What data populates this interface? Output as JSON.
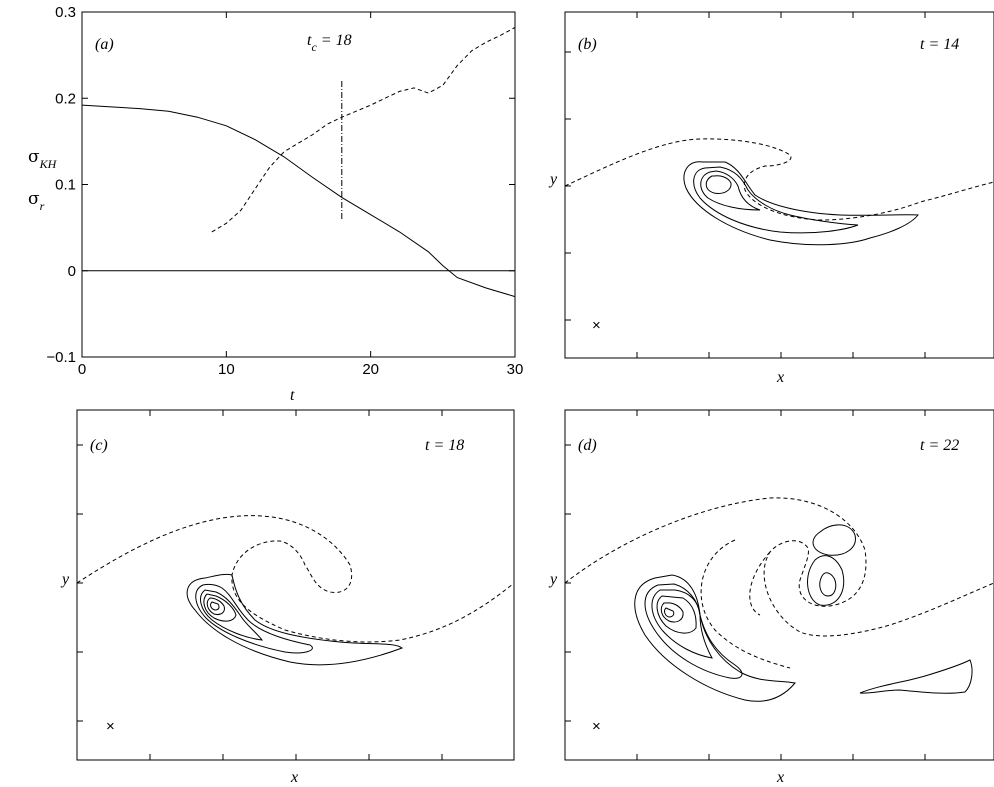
{
  "chart_data": [
    {
      "type": "line",
      "panel": "(a)",
      "xlabel": "t",
      "ylabel_lines": [
        {
          "symbol": "σ",
          "subscript": "KH"
        },
        {
          "symbol": "σ",
          "subscript": "r"
        }
      ],
      "xlim": [
        0,
        30
      ],
      "ylim": [
        -0.1,
        0.3
      ],
      "xticks": [
        0,
        10,
        20,
        30
      ],
      "xtick_labels": [
        "0",
        "10",
        "20",
        "30"
      ],
      "yticks": [
        -0.1,
        0,
        0.1,
        0.2,
        0.3
      ],
      "ytick_labels": [
        "−0.1",
        "0",
        "0.1",
        "0.2",
        "0.3"
      ],
      "series": [
        {
          "style": "solid",
          "x": [
            0,
            2,
            4,
            6,
            8,
            10,
            12,
            14,
            16,
            18,
            20,
            22,
            24,
            25,
            26,
            28,
            30
          ],
          "y": [
            0.192,
            0.19,
            0.188,
            0.185,
            0.178,
            0.168,
            0.152,
            0.132,
            0.108,
            0.085,
            0.065,
            0.045,
            0.022,
            0.006,
            -0.008,
            -0.02,
            -0.03
          ]
        },
        {
          "style": "dashed",
          "x": [
            9,
            10,
            11,
            12,
            13,
            14,
            15,
            16,
            17,
            18,
            19,
            20,
            21,
            22,
            23,
            24,
            25,
            26,
            27,
            28,
            29,
            30
          ],
          "y": [
            0.045,
            0.055,
            0.07,
            0.095,
            0.12,
            0.138,
            0.148,
            0.158,
            0.17,
            0.178,
            0.185,
            0.192,
            0.2,
            0.208,
            0.212,
            0.206,
            0.215,
            0.238,
            0.255,
            0.265,
            0.273,
            0.282
          ]
        }
      ],
      "annotation": {
        "label_base": "t",
        "label_sub": "c",
        "label_rest": " = 18",
        "x": 18,
        "y_range": [
          0.06,
          0.22
        ]
      },
      "zero_line": 0
    },
    {
      "panel": "(b)",
      "time_label": "t = 14",
      "xlabel": "x",
      "ylabel": "y",
      "marker": "×"
    },
    {
      "panel": "(c)",
      "time_label": "t = 18",
      "xlabel": "x",
      "ylabel": "y",
      "marker": "×"
    },
    {
      "panel": "(d)",
      "time_label": "t = 22",
      "xlabel": "x",
      "ylabel": "y",
      "marker": "×"
    }
  ]
}
